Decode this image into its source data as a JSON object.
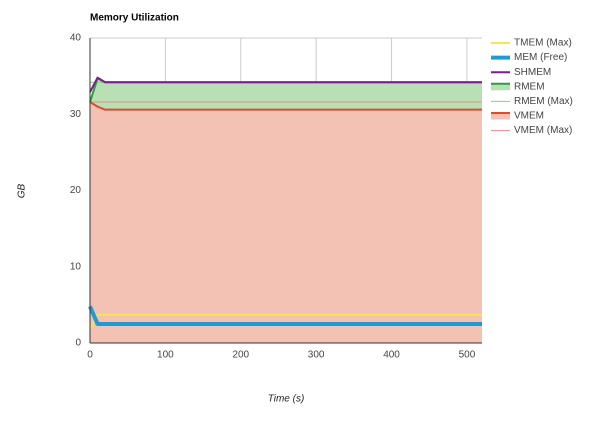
{
  "chart_data": {
    "type": "line",
    "title": "Memory Utilization",
    "x_label": "Time (s)",
    "y_label": "GB",
    "x": [
      0,
      10,
      20,
      100,
      200,
      300,
      400,
      500,
      520
    ],
    "xlim": [
      0,
      520
    ],
    "xticks": [
      0,
      100,
      200,
      300,
      400,
      500
    ],
    "ylim": [
      0,
      40
    ],
    "yticks": [
      0,
      10,
      20,
      30,
      40
    ],
    "grid": true,
    "legend": "right",
    "series": [
      {
        "name": "TMEM (Max)",
        "color": "#f7e64a",
        "width": 2,
        "values": [
          1.8,
          3.7,
          3.7,
          3.7,
          3.7,
          3.7,
          3.7,
          3.7,
          3.7
        ]
      },
      {
        "name": "MEM (Free)",
        "color": "#1f9bd1",
        "width": 4,
        "values": [
          4.8,
          2.5,
          2.5,
          2.5,
          2.5,
          2.5,
          2.5,
          2.5,
          2.5
        ]
      },
      {
        "name": "SHMEM",
        "color": "#7a1f8f",
        "width": 2,
        "values": [
          32.9,
          34.8,
          34.2,
          34.2,
          34.2,
          34.2,
          34.2,
          34.2,
          34.2
        ]
      },
      {
        "name": "RMEM",
        "color": "#2e9e3a",
        "width": 2,
        "area": true,
        "area_color": "#b9dfb4",
        "values": [
          31.6,
          34.7,
          34.2,
          34.2,
          34.2,
          34.2,
          34.2,
          34.2,
          34.2
        ]
      },
      {
        "name": "RMEM (Max)",
        "color": "#86d08a",
        "width": 1,
        "values": [
          34.2,
          34.2,
          34.2,
          34.2,
          34.2,
          34.2,
          34.2,
          34.2,
          34.2
        ]
      },
      {
        "name": "VMEM",
        "color": "#dc4b2a",
        "width": 2,
        "area": true,
        "area_color": "#f4c2b5",
        "values": [
          31.6,
          31.0,
          30.6,
          30.6,
          30.6,
          30.6,
          30.6,
          30.6,
          30.6
        ]
      },
      {
        "name": "VMEM (Max)",
        "color": "#ef8a8a",
        "width": 1,
        "values": [
          31.6,
          31.6,
          31.6,
          31.6,
          31.6,
          31.6,
          31.6,
          31.6,
          31.6
        ]
      }
    ]
  }
}
